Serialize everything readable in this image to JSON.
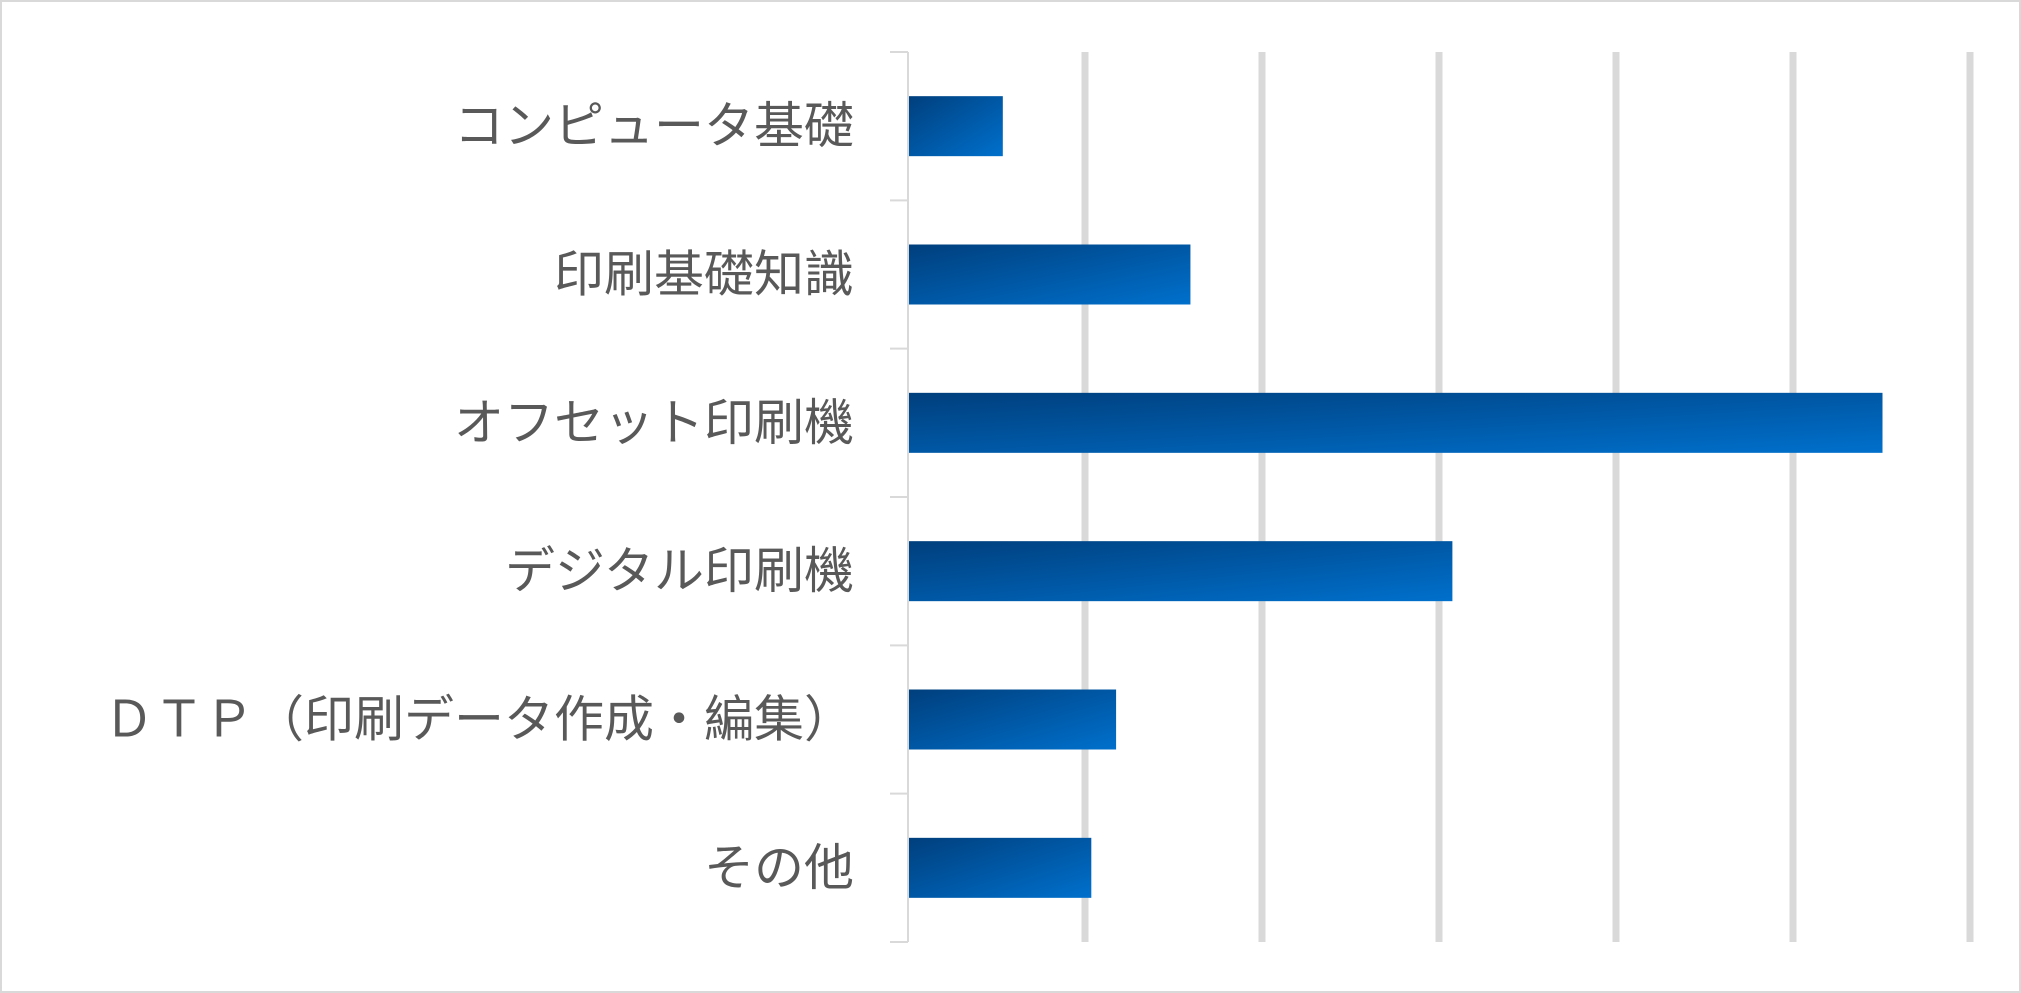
{
  "chart_data": {
    "type": "bar",
    "orientation": "horizontal",
    "title": "",
    "xlabel": "",
    "ylabel": "",
    "categories": [
      "コンピュータ基礎",
      "印刷基礎知識",
      "オフセット印刷機",
      "デジタル印刷機",
      "ＤＴＰ（印刷データ作成・編集）",
      "その他"
    ],
    "values": [
      0.53,
      1.59,
      5.5,
      3.07,
      1.17,
      1.03
    ],
    "xlim": [
      0,
      6
    ],
    "tick_labels_shown": false,
    "grid": "vertical",
    "legend": "none",
    "colors": {
      "bar_dark": "#003f7d",
      "bar_light": "#0070cc",
      "grid": "#d9d9d9",
      "axis": "#d9d9d9",
      "label": "#595959",
      "border": "#d9d9d9"
    }
  }
}
